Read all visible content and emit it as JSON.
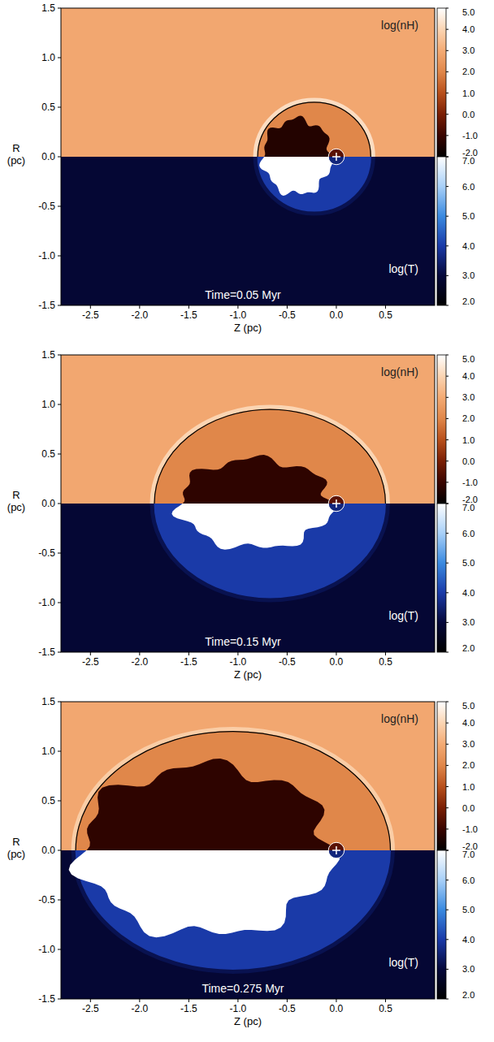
{
  "chart_data": [
    {
      "type": "map",
      "annotation": "Time=0.05 Myr",
      "xlabel": "Z (pc)",
      "ylabel": "R (pc)",
      "xlim": [
        -2.8,
        1.0
      ],
      "ylim": [
        -1.5,
        1.5
      ],
      "xticks": [
        -2.5,
        {
          "value": -2,
          "label": "-2.0"
        },
        -1.5,
        {
          "value": -1,
          "label": "-1.0"
        },
        -0.5,
        {
          "value": 0,
          "label": "0.0"
        },
        0.5
      ],
      "yticks": [
        -1.5,
        {
          "value": -1,
          "label": "-1.0"
        },
        -0.5,
        {
          "value": 0,
          "label": "0.0"
        },
        0.5,
        {
          "value": 1,
          "label": "1.0"
        },
        1.5
      ],
      "density": {
        "label": "log(nH)",
        "range": [
          -2,
          5
        ],
        "ticks": [
          {
            "value": -2,
            "label": "-2.0"
          },
          {
            "value": -1,
            "label": "-1.0"
          },
          {
            "value": 0,
            "label": "0.0"
          },
          {
            "value": 1,
            "label": "1.0"
          },
          {
            "value": 2,
            "label": "2.0"
          },
          {
            "value": 3,
            "label": "3.0"
          },
          {
            "value": 4,
            "label": "4.0"
          },
          {
            "value": 5,
            "label": "5.0"
          }
        ],
        "ambient": 2.9,
        "ionized": 2.0,
        "hot": -1.4,
        "shell": 4.2,
        "wind": -0.5
      },
      "temperature": {
        "label": "log(T)",
        "range": [
          2,
          7
        ],
        "ticks": [
          {
            "value": 2,
            "label": "2.0"
          },
          {
            "value": 3,
            "label": "3.0"
          },
          {
            "value": 4,
            "label": "4.0"
          },
          {
            "value": 5,
            "label": "5.0"
          },
          {
            "value": 6,
            "label": "6.0"
          },
          {
            "value": 7,
            "label": "7.0"
          }
        ],
        "ambient": 2.9,
        "ionized": 4.0,
        "hot": 7.0,
        "shell": 3.2,
        "wind": 3.6
      },
      "ionized_region": {
        "z": [
          -0.8,
          0.35
        ],
        "r": 0.55
      },
      "hot_bubble": {
        "z": [
          -0.75,
          -0.05
        ],
        "r": 0.38
      },
      "star": {
        "z": 0,
        "r": 0,
        "wind_radius": 0.08
      }
    },
    {
      "type": "map",
      "annotation": "Time=0.15 Myr",
      "xlabel": "Z (pc)",
      "ylabel": "R (pc)",
      "xlim": [
        -2.8,
        1.0
      ],
      "ylim": [
        -1.5,
        1.5
      ],
      "xticks": [
        -2.5,
        {
          "value": -2,
          "label": "-2.0"
        },
        -1.5,
        {
          "value": -1,
          "label": "-1.0"
        },
        -0.5,
        {
          "value": 0,
          "label": "0.0"
        },
        0.5
      ],
      "yticks": [
        -1.5,
        {
          "value": -1,
          "label": "-1.0"
        },
        -0.5,
        {
          "value": 0,
          "label": "0.0"
        },
        0.5,
        {
          "value": 1,
          "label": "1.0"
        },
        1.5
      ],
      "density": {
        "label": "log(nH)",
        "range": [
          -2,
          5
        ],
        "ticks": [
          {
            "value": -2,
            "label": "-2.0"
          },
          {
            "value": -1,
            "label": "-1.0"
          },
          {
            "value": 0,
            "label": "0.0"
          },
          {
            "value": 1,
            "label": "1.0"
          },
          {
            "value": 2,
            "label": "2.0"
          },
          {
            "value": 3,
            "label": "3.0"
          },
          {
            "value": 4,
            "label": "4.0"
          },
          {
            "value": 5,
            "label": "5.0"
          }
        ],
        "ambient": 2.9,
        "ionized": 2.0,
        "hot": -1.2,
        "shell": 4.0,
        "wind": -0.5
      },
      "temperature": {
        "label": "log(T)",
        "range": [
          2,
          7
        ],
        "ticks": [
          {
            "value": 2,
            "label": "2.0"
          },
          {
            "value": 3,
            "label": "3.0"
          },
          {
            "value": 4,
            "label": "4.0"
          },
          {
            "value": 5,
            "label": "5.0"
          },
          {
            "value": 6,
            "label": "6.0"
          },
          {
            "value": 7,
            "label": "7.0"
          }
        ],
        "ambient": 2.9,
        "ionized": 4.0,
        "hot": 7.0,
        "shell": 3.2,
        "wind": 3.6
      },
      "ionized_region": {
        "z": [
          -1.85,
          0.5
        ],
        "r": 0.95
      },
      "hot_bubble": {
        "z": [
          -1.6,
          -0.05
        ],
        "r": 0.45
      },
      "star": {
        "z": 0,
        "r": 0,
        "wind_radius": 0.08
      }
    },
    {
      "type": "map",
      "annotation": "Time=0.275 Myr",
      "xlabel": "Z (pc)",
      "ylabel": "R (pc)",
      "xlim": [
        -2.8,
        1.0
      ],
      "ylim": [
        -1.5,
        1.5
      ],
      "xticks": [
        -2.5,
        {
          "value": -2,
          "label": "-2.0"
        },
        -1.5,
        {
          "value": -1,
          "label": "-1.0"
        },
        -0.5,
        {
          "value": 0,
          "label": "0.0"
        },
        0.5
      ],
      "yticks": [
        -1.5,
        {
          "value": -1,
          "label": "-1.0"
        },
        -0.5,
        {
          "value": 0,
          "label": "0.0"
        },
        0.5,
        {
          "value": 1,
          "label": "1.0"
        },
        1.5
      ],
      "density": {
        "label": "log(nH)",
        "range": [
          -2,
          5
        ],
        "ticks": [
          {
            "value": -2,
            "label": "-2.0"
          },
          {
            "value": -1,
            "label": "-1.0"
          },
          {
            "value": 0,
            "label": "0.0"
          },
          {
            "value": 1,
            "label": "1.0"
          },
          {
            "value": 2,
            "label": "2.0"
          },
          {
            "value": 3,
            "label": "3.0"
          },
          {
            "value": 4,
            "label": "4.0"
          },
          {
            "value": 5,
            "label": "5.0"
          }
        ],
        "ambient": 2.9,
        "ionized": 2.0,
        "hot": -1.2,
        "shell": 3.8,
        "wind": -0.5
      },
      "temperature": {
        "label": "log(T)",
        "range": [
          2,
          7
        ],
        "ticks": [
          {
            "value": 2,
            "label": "2.0"
          },
          {
            "value": 3,
            "label": "3.0"
          },
          {
            "value": 4,
            "label": "4.0"
          },
          {
            "value": 5,
            "label": "5.0"
          },
          {
            "value": 6,
            "label": "6.0"
          },
          {
            "value": 7,
            "label": "7.0"
          }
        ],
        "ambient": 2.9,
        "ionized": 4.0,
        "hot": 7.0,
        "shell": 3.2,
        "wind": 3.6
      },
      "ionized_region": {
        "z": [
          -2.65,
          0.55
        ],
        "r": 1.2
      },
      "hot_bubble": {
        "z": [
          -2.6,
          -0.05
        ],
        "r": 0.85
      },
      "star": {
        "z": 0,
        "r": 0,
        "wind_radius": 0.08
      }
    }
  ]
}
